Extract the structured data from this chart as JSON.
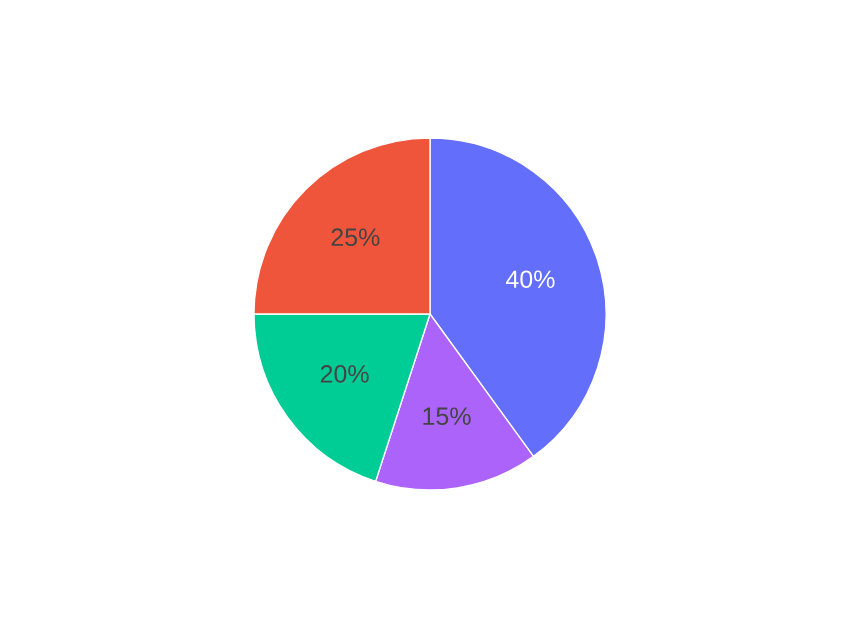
{
  "chart_data": {
    "type": "pie",
    "categories": [
      null,
      null,
      null,
      null
    ],
    "values": [
      40,
      15,
      20,
      25
    ],
    "colors": [
      "#636efa",
      "#ab63fa",
      "#00cc96",
      "#ef553b"
    ],
    "value_labels": [
      "40%",
      "15%",
      "20%",
      "25%"
    ]
  }
}
